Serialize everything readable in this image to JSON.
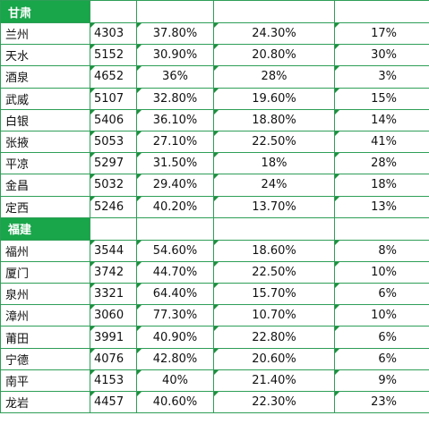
{
  "groups": [
    {
      "province": "甘肃",
      "rows": [
        {
          "city": "兰州",
          "count": "4303",
          "p1": "37.80%",
          "p2": "24.30%",
          "p3": "17%"
        },
        {
          "city": "天水",
          "count": "5152",
          "p1": "30.90%",
          "p2": "20.80%",
          "p3": "30%"
        },
        {
          "city": "酒泉",
          "count": "4652",
          "p1": "36%",
          "p2": "28%",
          "p3": "3%"
        },
        {
          "city": "武威",
          "count": "5107",
          "p1": "32.80%",
          "p2": "19.60%",
          "p3": "15%"
        },
        {
          "city": "白银",
          "count": "5406",
          "p1": "36.10%",
          "p2": "18.80%",
          "p3": "14%"
        },
        {
          "city": "张掖",
          "count": "5053",
          "p1": "27.10%",
          "p2": "22.50%",
          "p3": "41%"
        },
        {
          "city": "平凉",
          "count": "5297",
          "p1": "31.50%",
          "p2": "18%",
          "p3": "28%"
        },
        {
          "city": "金昌",
          "count": "5032",
          "p1": "29.40%",
          "p2": "24%",
          "p3": "18%"
        },
        {
          "city": "定西",
          "count": "5246",
          "p1": "40.20%",
          "p2": "13.70%",
          "p3": "13%"
        }
      ]
    },
    {
      "province": "福建",
      "rows": [
        {
          "city": "福州",
          "count": "3544",
          "p1": "54.60%",
          "p2": "18.60%",
          "p3": "8%"
        },
        {
          "city": "厦门",
          "count": "3742",
          "p1": "44.70%",
          "p2": "22.50%",
          "p3": "10%"
        },
        {
          "city": "泉州",
          "count": "3321",
          "p1": "64.40%",
          "p2": "15.70%",
          "p3": "6%"
        },
        {
          "city": "漳州",
          "count": "3060",
          "p1": "77.30%",
          "p2": "10.70%",
          "p3": "10%"
        },
        {
          "city": "莆田",
          "count": "3991",
          "p1": "40.90%",
          "p2": "22.80%",
          "p3": "6%"
        },
        {
          "city": "宁德",
          "count": "4076",
          "p1": "42.80%",
          "p2": "20.60%",
          "p3": "6%"
        },
        {
          "city": "南平",
          "count": "4153",
          "p1": "40%",
          "p2": "21.40%",
          "p3": "9%"
        },
        {
          "city": "龙岩",
          "count": "4457",
          "p1": "40.60%",
          "p2": "22.30%",
          "p3": "23%"
        }
      ]
    }
  ],
  "colors": {
    "header_fill": "#19a54a",
    "grid_line": "#2e9e57",
    "marker": "#1f8f3f"
  }
}
